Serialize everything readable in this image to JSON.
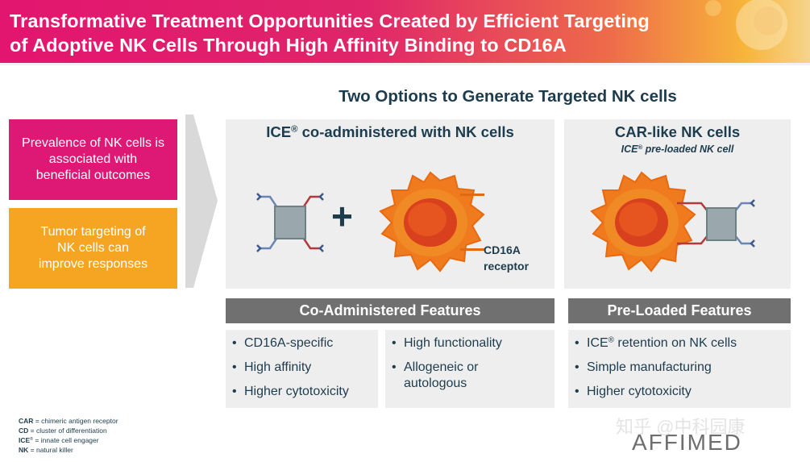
{
  "banner": {
    "title_line1": "Transformative Treatment Opportunities Created by Efficient Targeting",
    "title_line2": "of Adoptive NK Cells Through High Affinity Binding to CD16A"
  },
  "left_boxes": [
    {
      "text": "Prevalence of NK cells is associated with beneficial outcomes",
      "color": "#dd1875"
    },
    {
      "text": "Tumor targeting of NK cells can improve responses",
      "color": "#f6a523"
    }
  ],
  "options_title": "Two Options to Generate Targeted NK cells",
  "co_panel": {
    "title_prefix": "ICE",
    "title_sup": "®",
    "title_suffix": " co-administered with NK cells",
    "plus": "+",
    "receptor_label_1": "CD16A",
    "receptor_label_2": "receptor"
  },
  "pre_panel": {
    "title": "CAR-like NK cells",
    "sub_prefix": "ICE",
    "sub_sup": "®",
    "sub_suffix": " pre-loaded NK cell"
  },
  "features": {
    "co_header": "Co-Administered Features",
    "pre_header": "Pre-Loaded Features",
    "col_a": [
      "CD16A-specific",
      "High affinity",
      "Higher cytotoxicity"
    ],
    "col_b": [
      "High functionality",
      "Allogeneic or autologous"
    ],
    "col_c_first_prefix": "ICE",
    "col_c_first_sup": "®",
    "col_c_first_suffix": " retention on NK cells",
    "col_c": [
      "Simple manufacturing",
      "Higher cytotoxicity"
    ]
  },
  "footnotes": [
    {
      "abbr": "CAR",
      "sup": "",
      "def": " = chimeric antigen receptor"
    },
    {
      "abbr": "CD",
      "sup": "",
      "def": " = cluster of differentiation"
    },
    {
      "abbr": "ICE",
      "sup": "®",
      "def": " = innate cell engager"
    },
    {
      "abbr": "NK",
      "sup": "",
      "def": " = natural killer"
    }
  ],
  "watermark": "知乎 @中科园康",
  "logo": "AFFIMED",
  "colors": {
    "navy": "#1d3c4d",
    "pink": "#dd1875",
    "orange": "#f6a523",
    "header_gray": "#707070",
    "panel_gray": "#eeeeee",
    "cell_orange": "#f07a1e"
  }
}
